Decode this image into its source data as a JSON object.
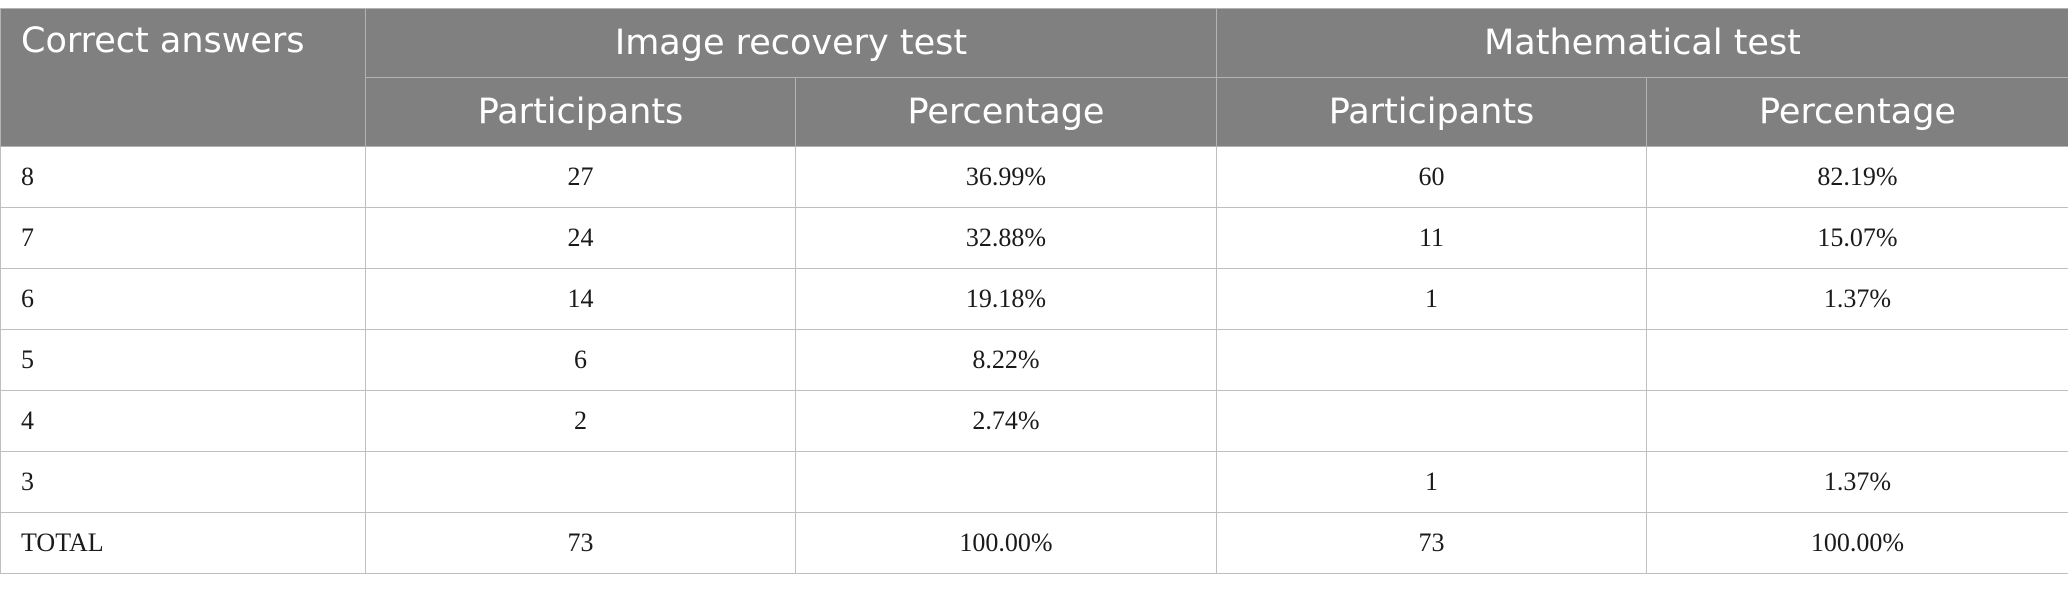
{
  "table": {
    "corner_header": "Correct answers",
    "groups": [
      {
        "label": "Image recovery test"
      },
      {
        "label": "Mathematical test"
      }
    ],
    "subheaders": [
      "Participants",
      "Percentage",
      "Participants",
      "Percentage"
    ],
    "rows": [
      {
        "label": "8",
        "cells": [
          "27",
          "36.99%",
          "60",
          "82.19%"
        ]
      },
      {
        "label": "7",
        "cells": [
          "24",
          "32.88%",
          "11",
          "15.07%"
        ]
      },
      {
        "label": "6",
        "cells": [
          "14",
          "19.18%",
          "1",
          "1.37%"
        ]
      },
      {
        "label": "5",
        "cells": [
          "6",
          "8.22%",
          "",
          ""
        ]
      },
      {
        "label": "4",
        "cells": [
          "2",
          "2.74%",
          "",
          ""
        ]
      },
      {
        "label": "3",
        "cells": [
          "",
          "",
          "1",
          "1.37%"
        ]
      },
      {
        "label": "TOTAL",
        "cells": [
          "73",
          "100.00%",
          "73",
          "100.00%"
        ]
      }
    ]
  },
  "colors": {
    "header_bg": "#808080",
    "header_text": "#ffffff",
    "grid": "#bfbfbf"
  }
}
